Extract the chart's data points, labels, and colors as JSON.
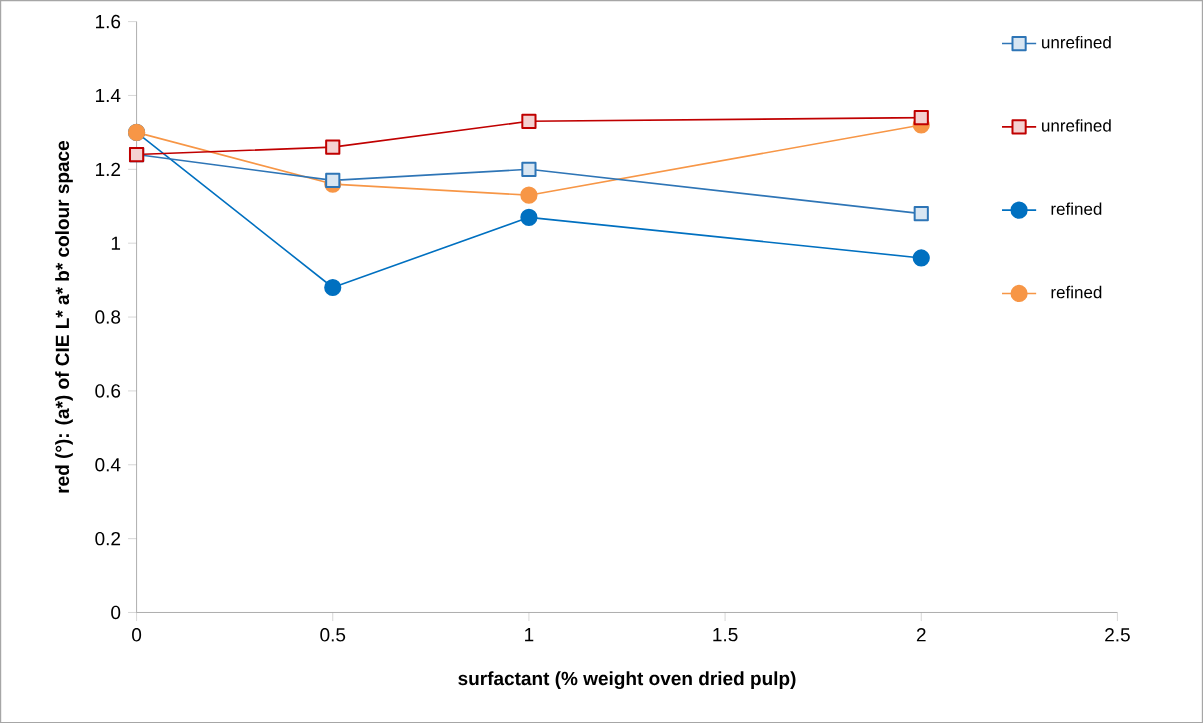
{
  "chart_data": {
    "type": "line",
    "xlabel": "surfactant (% weight oven dried pulp)",
    "ylabel": "red  (°): (a*) of  CIE L* a* b* colour space",
    "x": [
      0,
      0.5,
      1,
      2
    ],
    "xlim": [
      0,
      2.5
    ],
    "xticks": [
      0,
      0.5,
      1,
      1.5,
      2,
      2.5
    ],
    "ylim": [
      0,
      1.6
    ],
    "yticks": [
      0,
      0.2,
      0.4,
      0.6,
      0.8,
      1,
      1.2,
      1.4,
      1.6
    ],
    "grid": false,
    "legend": "right",
    "line_style": "solid",
    "series": [
      {
        "name": "unrefined",
        "color": "#2e75b6",
        "marker": "square",
        "values": [
          1.24,
          1.17,
          1.2,
          1.08
        ]
      },
      {
        "name": "unrefined",
        "color": "#c00000",
        "marker": "square",
        "values": [
          1.24,
          1.26,
          1.33,
          1.34
        ]
      },
      {
        "name": "refined",
        "color": "#0070c0",
        "marker": "circle",
        "values": [
          1.3,
          0.88,
          1.07,
          0.96
        ]
      },
      {
        "name": "refined",
        "color": "#f79646",
        "marker": "circle",
        "values": [
          1.3,
          1.16,
          1.13,
          1.32
        ]
      }
    ]
  }
}
